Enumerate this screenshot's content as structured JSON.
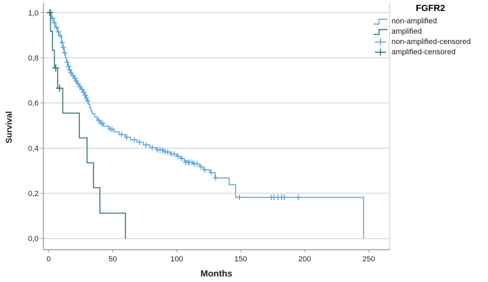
{
  "figure": {
    "xlabel": "Months",
    "ylabel": "Survival"
  },
  "legend": {
    "title": "FGFR2",
    "entries": [
      {
        "label": "non-amplified",
        "symbol": "step",
        "color": "#54A2DA"
      },
      {
        "label": "amplified",
        "symbol": "step",
        "color": "#31706B"
      },
      {
        "label": "non-amplified-censored",
        "symbol": "plus",
        "color": "#54A2DA"
      },
      {
        "label": "amplified-censored",
        "symbol": "plus",
        "color": "#31706B"
      }
    ]
  },
  "chart_data": {
    "type": "line",
    "subtype": "kaplan-meier-step",
    "title": "FGFR2",
    "xlabel": "Months",
    "ylabel": "Survival",
    "xlim": [
      -4.1,
      266.2
    ],
    "ylim": [
      -0.0496,
      1.0435
    ],
    "x_ticks": [
      0,
      50,
      100,
      150,
      200,
      250
    ],
    "x_tick_labels": [
      "0",
      "50",
      "100",
      "150",
      "200",
      "250"
    ],
    "y_ticks": [
      0.0,
      0.2,
      0.4,
      0.6,
      0.8,
      1.0
    ],
    "y_tick_labels": [
      "0,0",
      "0,2",
      "0,4",
      "0,6",
      "0,8",
      "1,0"
    ],
    "grid": true,
    "legend_position": "top-right-outside",
    "axis_color": "#8F8F8F",
    "grid_color": "#CBCBCB",
    "frame_color": "#C4C4C4",
    "text_color": "#262626",
    "series": [
      {
        "name": "non-amplified",
        "color": "#54A2DA",
        "steps": [
          [
            0,
            1.0
          ],
          [
            2,
            0.975
          ],
          [
            4,
            0.955
          ],
          [
            5,
            0.935
          ],
          [
            7,
            0.915
          ],
          [
            8,
            0.898
          ],
          [
            10,
            0.868
          ],
          [
            11,
            0.845
          ],
          [
            12,
            0.822
          ],
          [
            13,
            0.8
          ],
          [
            14,
            0.78
          ],
          [
            15,
            0.762
          ],
          [
            16,
            0.746
          ],
          [
            17,
            0.733
          ],
          [
            18,
            0.721
          ],
          [
            20,
            0.709
          ],
          [
            21,
            0.697
          ],
          [
            22,
            0.685
          ],
          [
            24,
            0.672
          ],
          [
            25,
            0.66
          ],
          [
            27,
            0.647
          ],
          [
            28,
            0.635
          ],
          [
            29,
            0.621
          ],
          [
            30,
            0.609
          ],
          [
            31,
            0.594
          ],
          [
            32,
            0.579
          ],
          [
            33,
            0.565
          ],
          [
            34,
            0.552
          ],
          [
            36,
            0.538
          ],
          [
            38,
            0.524
          ],
          [
            40,
            0.51
          ],
          [
            43,
            0.497
          ],
          [
            47,
            0.484
          ],
          [
            51,
            0.472
          ],
          [
            55,
            0.46
          ],
          [
            60,
            0.448
          ],
          [
            64,
            0.437
          ],
          [
            69,
            0.426
          ],
          [
            74,
            0.414
          ],
          [
            79,
            0.402
          ],
          [
            84,
            0.392
          ],
          [
            90,
            0.383
          ],
          [
            95,
            0.374
          ],
          [
            100,
            0.364
          ],
          [
            103,
            0.354
          ],
          [
            106,
            0.343
          ],
          [
            108,
            0.337
          ],
          [
            113,
            0.33
          ],
          [
            118,
            0.317
          ],
          [
            121,
            0.304
          ],
          [
            126,
            0.292
          ],
          [
            130,
            0.268
          ],
          [
            141,
            0.238
          ],
          [
            146,
            0.182
          ],
          [
            246,
            0
          ]
        ],
        "censored": [
          [
            1.5,
            1.0
          ],
          [
            3,
            0.975
          ],
          [
            4.5,
            0.955
          ],
          [
            6,
            0.935
          ],
          [
            7.5,
            0.915
          ],
          [
            9,
            0.898
          ],
          [
            10.5,
            0.868
          ],
          [
            11.5,
            0.845
          ],
          [
            12.5,
            0.822
          ],
          [
            14.5,
            0.78
          ],
          [
            15.5,
            0.762
          ],
          [
            16.5,
            0.746
          ],
          [
            17.5,
            0.733
          ],
          [
            19,
            0.721
          ],
          [
            20.5,
            0.709
          ],
          [
            21.5,
            0.697
          ],
          [
            23,
            0.685
          ],
          [
            24.5,
            0.672
          ],
          [
            26,
            0.66
          ],
          [
            27.5,
            0.647
          ],
          [
            28.5,
            0.635
          ],
          [
            29.5,
            0.621
          ],
          [
            30.5,
            0.609
          ],
          [
            39,
            0.524
          ],
          [
            41,
            0.51
          ],
          [
            42,
            0.51
          ],
          [
            48,
            0.484
          ],
          [
            49.5,
            0.484
          ],
          [
            57,
            0.46
          ],
          [
            61,
            0.448
          ],
          [
            67,
            0.437
          ],
          [
            71,
            0.426
          ],
          [
            76,
            0.414
          ],
          [
            81,
            0.402
          ],
          [
            85,
            0.392
          ],
          [
            87,
            0.392
          ],
          [
            89,
            0.392
          ],
          [
            91,
            0.383
          ],
          [
            93,
            0.383
          ],
          [
            96,
            0.374
          ],
          [
            98,
            0.374
          ],
          [
            101,
            0.364
          ],
          [
            104,
            0.354
          ],
          [
            107,
            0.337
          ],
          [
            109,
            0.337
          ],
          [
            110,
            0.337
          ],
          [
            112,
            0.337
          ],
          [
            114,
            0.33
          ],
          [
            116,
            0.33
          ],
          [
            119,
            0.317
          ],
          [
            122,
            0.304
          ],
          [
            127,
            0.292
          ],
          [
            130.5,
            0.268
          ],
          [
            149,
            0.182
          ],
          [
            174,
            0.182
          ],
          [
            176,
            0.182
          ],
          [
            179,
            0.182
          ],
          [
            182,
            0.182
          ],
          [
            184,
            0.182
          ],
          [
            195,
            0.182
          ]
        ]
      },
      {
        "name": "amplified",
        "color": "#31706B",
        "steps": [
          [
            0,
            1.0
          ],
          [
            1.5,
            0.917
          ],
          [
            3,
            0.833
          ],
          [
            4.5,
            0.755
          ],
          [
            7,
            0.665
          ],
          [
            11,
            0.555
          ],
          [
            24,
            0.445
          ],
          [
            30,
            0.335
          ],
          [
            35,
            0.225
          ],
          [
            40,
            0.112
          ],
          [
            60,
            0
          ]
        ],
        "censored": [
          [
            1,
            1.0
          ],
          [
            5.5,
            0.755
          ],
          [
            8.5,
            0.665
          ]
        ]
      }
    ]
  }
}
